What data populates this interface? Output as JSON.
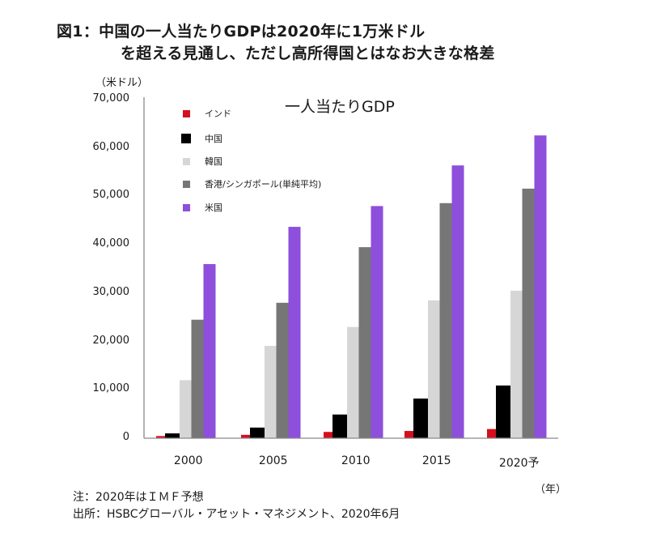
{
  "figure": {
    "title_line1": "図1：中国の一人当たりGDPは2020年に1万米ドル",
    "title_line2": "を超える見通し、ただし高所得国とはなお大きな格差",
    "note": "注：2020年はＩＭＦ予想",
    "source": "出所：HSBCグローバル・アセット・マネジメント、2020年6月"
  },
  "chart_data": {
    "type": "bar",
    "title": "一人当たりGDP",
    "ylabel": "（米ドル）",
    "xlabel": "（年）",
    "ylim": [
      0,
      70000
    ],
    "yticks": [
      0,
      10000,
      20000,
      30000,
      40000,
      50000,
      60000,
      70000
    ],
    "ytick_labels": [
      "0",
      "10,000",
      "20,000",
      "30,000",
      "40,000",
      "50,000",
      "60,000",
      "70,000"
    ],
    "categories": [
      "2000",
      "2005",
      "2010",
      "2015",
      "2020予"
    ],
    "grid": false,
    "legend_position": "top-left",
    "series": [
      {
        "name": "インド",
        "color": "#d40f1e",
        "values": [
          450,
          700,
          1300,
          1500,
          1900
        ]
      },
      {
        "name": "中国",
        "color": "#000000",
        "values": [
          1000,
          2200,
          4900,
          8200,
          10900
        ]
      },
      {
        "name": "韓国",
        "color": "#d6d6d6",
        "values": [
          12000,
          19100,
          23000,
          28500,
          30500
        ]
      },
      {
        "name": "香港/シンガポール(単純平均)",
        "color": "#767676",
        "values": [
          24500,
          28000,
          39500,
          48600,
          51600
        ]
      },
      {
        "name": "米国",
        "color": "#8e4fdc",
        "values": [
          36000,
          43700,
          48000,
          56400,
          62600
        ]
      }
    ]
  }
}
